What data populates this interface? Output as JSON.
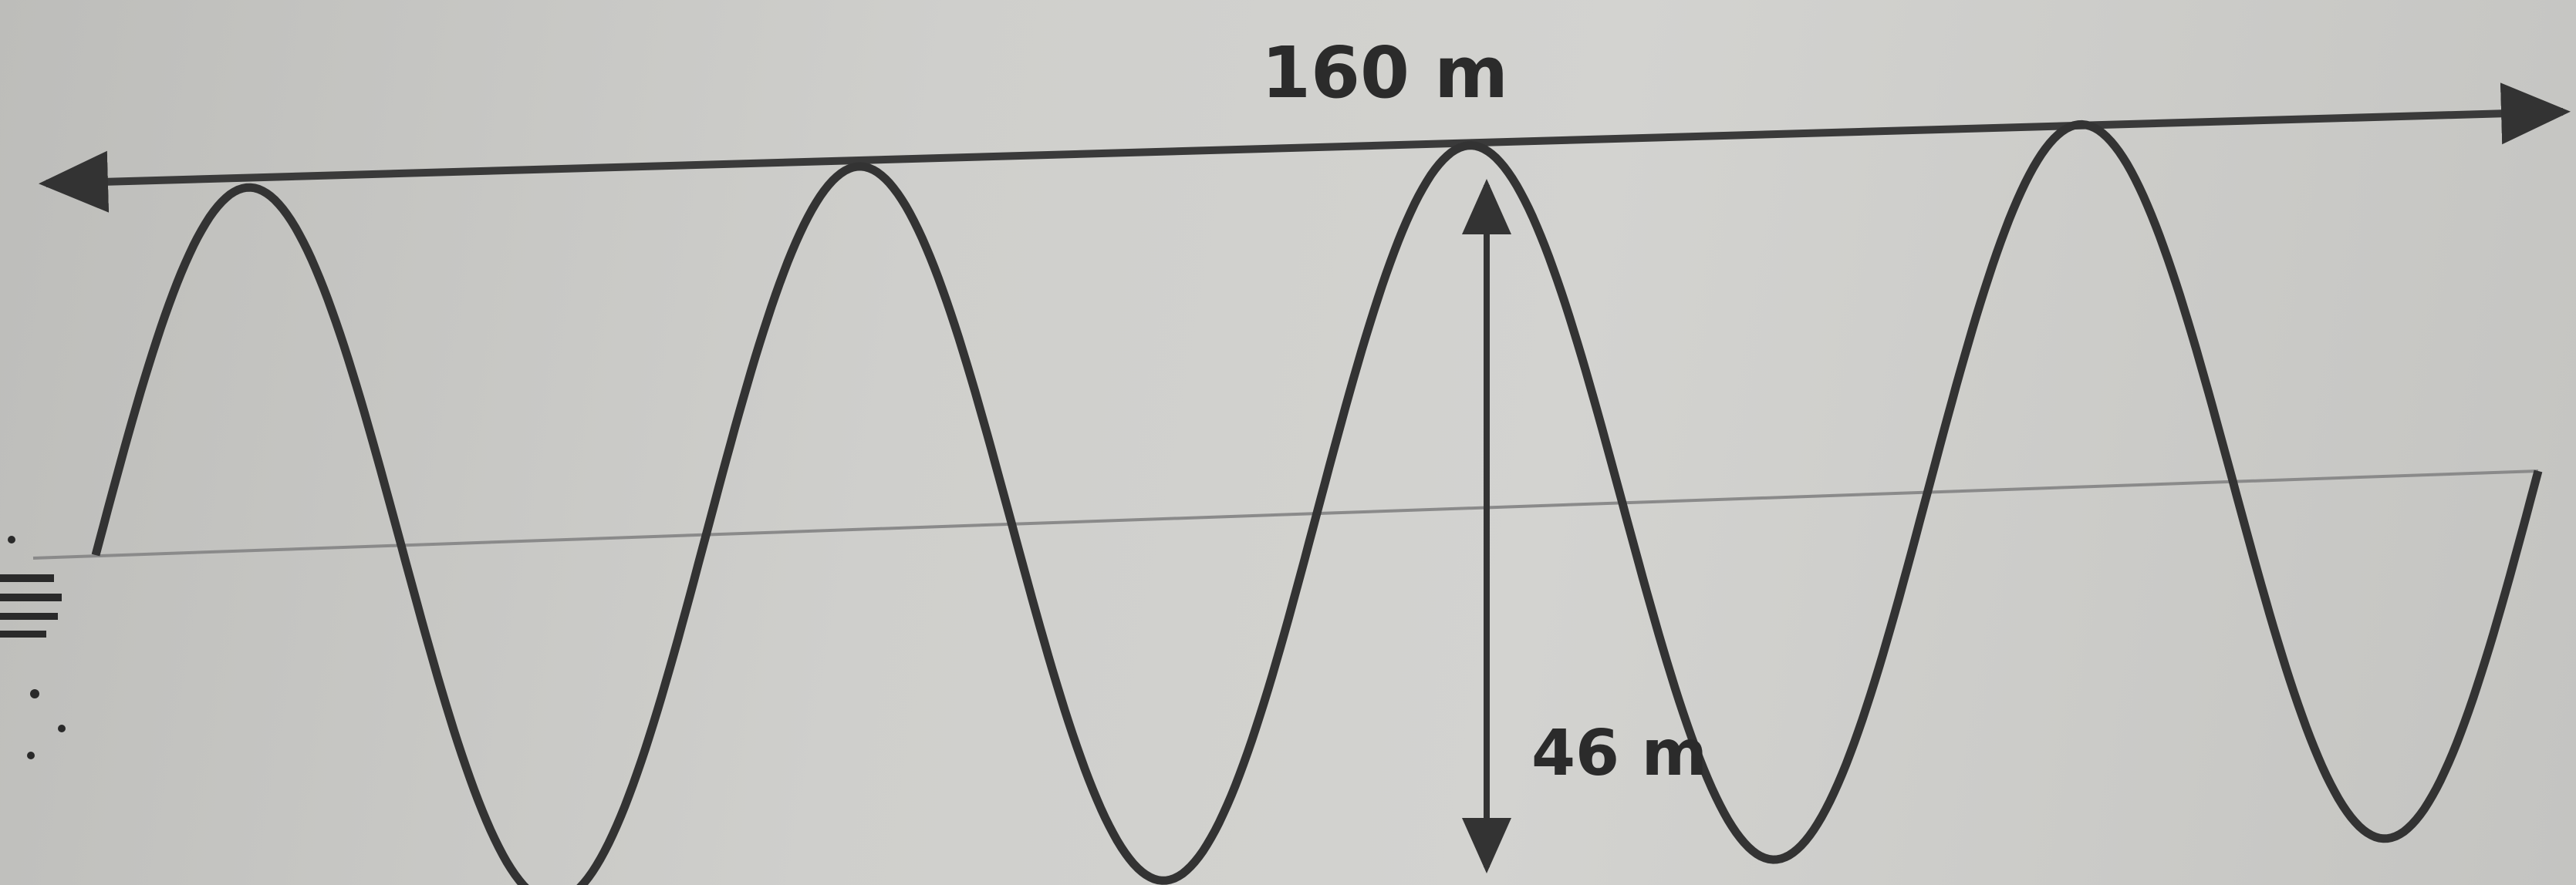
{
  "diagram": {
    "wavelength_total_label": "160 m",
    "height_label": "46 m",
    "wave_cycles": 4,
    "colors": {
      "line": "#333333",
      "midline": "#8a8a8a",
      "background": "#cdcdca"
    }
  }
}
